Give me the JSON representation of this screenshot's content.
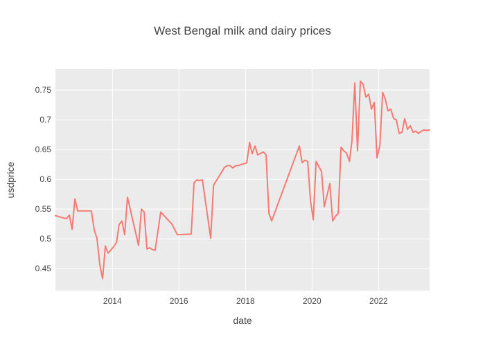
{
  "chart_data": {
    "type": "line",
    "title": "West Bengal milk and dairy prices",
    "xlabel": "date",
    "ylabel": "usdprice",
    "x_range": [
      "2012-04-15",
      "2023-07-15"
    ],
    "y_range": [
      0.413,
      0.785
    ],
    "x_ticks": [
      "2014",
      "2016",
      "2018",
      "2020",
      "2022"
    ],
    "y_ticks": [
      "0.45",
      "0.5",
      "0.55",
      "0.6",
      "0.65",
      "0.7",
      "0.75"
    ],
    "grid": true,
    "legend": "none",
    "colors": {
      "line": "#f47a74",
      "plot_bg": "#ebebeb",
      "grid": "#ffffff",
      "text": "#444444"
    },
    "series": [
      {
        "x": [
          "2012-04-15",
          "2012-07-15",
          "2012-08-15",
          "2012-09-15",
          "2012-10-15",
          "2012-11-15",
          "2012-12-15",
          "2013-05-15",
          "2013-06-15",
          "2013-07-15",
          "2013-08-15",
          "2013-09-15",
          "2013-10-15",
          "2013-11-15",
          "2014-01-15",
          "2014-02-15",
          "2014-03-15",
          "2014-04-15",
          "2014-05-15",
          "2014-06-15",
          "2014-10-15",
          "2014-11-15",
          "2014-12-15",
          "2015-01-15",
          "2015-02-15",
          "2015-03-15",
          "2015-04-15",
          "2015-06-15",
          "2015-10-15",
          "2015-12-15",
          "2016-05-15",
          "2016-06-15",
          "2016-07-15",
          "2016-08-15",
          "2016-09-15",
          "2016-12-15",
          "2017-01-15",
          "2017-05-15",
          "2017-06-15",
          "2017-07-15",
          "2017-08-15",
          "2017-09-15",
          "2017-10-15",
          "2017-11-15",
          "2017-12-15",
          "2018-01-15",
          "2018-02-15",
          "2018-03-15",
          "2018-04-15",
          "2018-05-15",
          "2018-07-15",
          "2018-08-15",
          "2018-09-15",
          "2018-10-15",
          "2019-08-15",
          "2019-09-15",
          "2019-10-15",
          "2019-11-15",
          "2019-12-15",
          "2020-01-15",
          "2020-02-15",
          "2020-04-15",
          "2020-05-15",
          "2020-07-15",
          "2020-08-15",
          "2020-09-15",
          "2020-10-15",
          "2020-11-15",
          "2020-12-15",
          "2021-01-15",
          "2021-02-15",
          "2021-03-15",
          "2021-04-15",
          "2021-05-15",
          "2021-06-15",
          "2021-07-15",
          "2021-08-15",
          "2021-09-15",
          "2021-10-15",
          "2021-11-15",
          "2021-12-15",
          "2022-01-15",
          "2022-02-15",
          "2022-03-15",
          "2022-04-15",
          "2022-05-15",
          "2022-06-15",
          "2022-07-15",
          "2022-08-15",
          "2022-09-15",
          "2022-10-15",
          "2022-11-15",
          "2022-12-15",
          "2023-01-15",
          "2023-02-15",
          "2023-03-15",
          "2023-04-15",
          "2023-05-15",
          "2023-06-15",
          "2023-07-15"
        ],
        "y": [
          0.539,
          0.535,
          0.534,
          0.54,
          0.516,
          0.567,
          0.547,
          0.547,
          0.515,
          0.501,
          0.457,
          0.433,
          0.488,
          0.476,
          0.487,
          0.494,
          0.524,
          0.53,
          0.507,
          0.57,
          0.489,
          0.55,
          0.545,
          0.483,
          0.485,
          0.482,
          0.481,
          0.545,
          0.525,
          0.507,
          0.508,
          0.594,
          0.599,
          0.598,
          0.599,
          0.501,
          0.59,
          0.62,
          0.623,
          0.623,
          0.619,
          0.623,
          0.623,
          0.625,
          0.626,
          0.628,
          0.662,
          0.643,
          0.656,
          0.641,
          0.646,
          0.641,
          0.543,
          0.53,
          0.656,
          0.628,
          0.632,
          0.63,
          0.565,
          0.532,
          0.63,
          0.613,
          0.554,
          0.593,
          0.53,
          0.538,
          0.543,
          0.654,
          0.648,
          0.644,
          0.63,
          0.665,
          0.762,
          0.648,
          0.765,
          0.76,
          0.738,
          0.743,
          0.718,
          0.729,
          0.636,
          0.657,
          0.746,
          0.735,
          0.715,
          0.718,
          0.702,
          0.7,
          0.677,
          0.679,
          0.702,
          0.684,
          0.69,
          0.679,
          0.681,
          0.677,
          0.681,
          0.683,
          0.682,
          0.683
        ]
      }
    ]
  }
}
